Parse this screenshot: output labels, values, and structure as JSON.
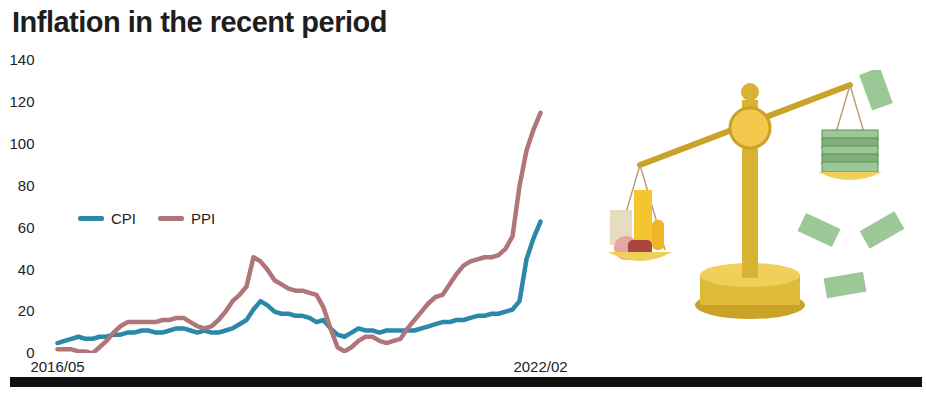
{
  "chart_data": {
    "type": "line",
    "title": "Inflation in the recent period",
    "categories": [
      "2016/05",
      null,
      null,
      null,
      null,
      null,
      null,
      null,
      null,
      null,
      null,
      null,
      null,
      null,
      null,
      null,
      null,
      null,
      null,
      null,
      null,
      null,
      null,
      null,
      null,
      null,
      null,
      null,
      null,
      null,
      null,
      null,
      null,
      null,
      null,
      null,
      null,
      null,
      null,
      null,
      null,
      null,
      null,
      null,
      null,
      null,
      null,
      null,
      null,
      null,
      null,
      null,
      null,
      null,
      null,
      null,
      null,
      null,
      null,
      null,
      null,
      null,
      null,
      null,
      null,
      null,
      null,
      null,
      null,
      "2022/02"
    ],
    "series": [
      {
        "name": "CPI",
        "color": "#2b88a9",
        "values": [
          5,
          6,
          7,
          8,
          7,
          7,
          8,
          8,
          9,
          9,
          10,
          10,
          11,
          11,
          10,
          10,
          11,
          12,
          12,
          11,
          10,
          11,
          10,
          10,
          11,
          12,
          14,
          16,
          21,
          25,
          23,
          20,
          19,
          19,
          18,
          18,
          17,
          15,
          16,
          12,
          9,
          8,
          10,
          12,
          11,
          11,
          10,
          11,
          11,
          11,
          11,
          11,
          12,
          13,
          14,
          15,
          15,
          16,
          16,
          17,
          18,
          18,
          19,
          19,
          20,
          21,
          25,
          45,
          55,
          63
        ]
      },
      {
        "name": "PPI",
        "color": "#b07578",
        "values": [
          2,
          2,
          2,
          1,
          1,
          0,
          3,
          6,
          10,
          13,
          15,
          15,
          15,
          15,
          15,
          16,
          16,
          17,
          17,
          15,
          13,
          12,
          13,
          16,
          20,
          25,
          28,
          32,
          46,
          44,
          40,
          35,
          33,
          31,
          30,
          30,
          29,
          28,
          22,
          12,
          3,
          1,
          3,
          6,
          8,
          8,
          6,
          5,
          6,
          7,
          12,
          16,
          20,
          24,
          27,
          28,
          33,
          38,
          42,
          44,
          45,
          46,
          46,
          47,
          50,
          56,
          80,
          97,
          107,
          115
        ]
      }
    ],
    "ylim": [
      0,
      140
    ],
    "yticks": [
      0,
      20,
      40,
      60,
      80,
      100,
      120,
      140
    ],
    "grid": false,
    "legend": "left"
  }
}
